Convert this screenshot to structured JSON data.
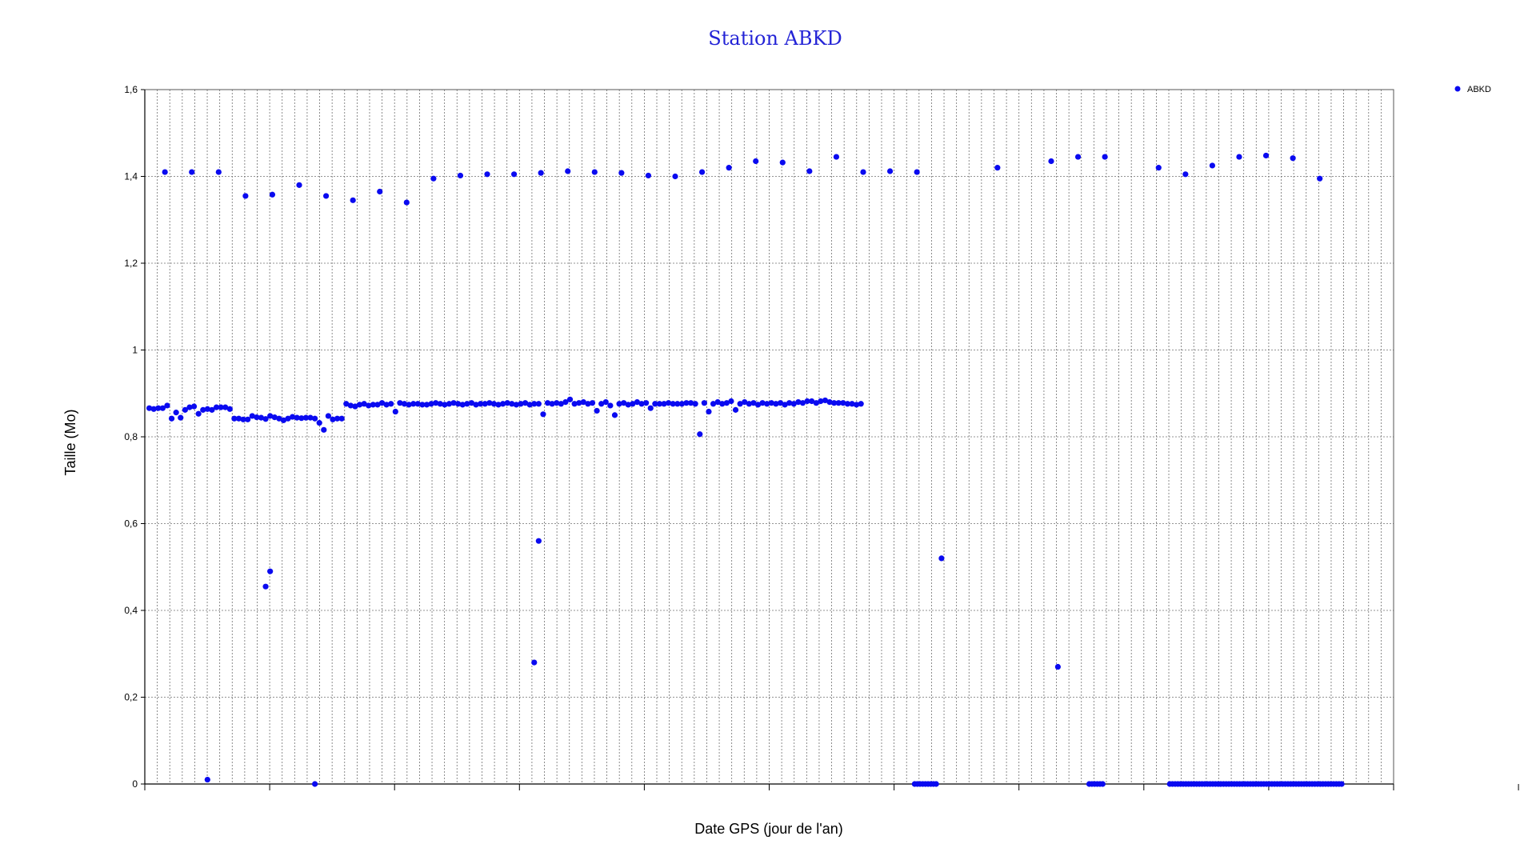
{
  "chart_data": {
    "type": "scatter",
    "title": "Station ABKD",
    "xlabel": "Date GPS (jour de l'an)",
    "ylabel": "Taille (Mo)",
    "ylim": [
      0,
      1.6
    ],
    "y_ticks": [
      "0",
      "0,2",
      "0,4",
      "0,6",
      "0,8",
      "1",
      "1,2",
      "1,4",
      "1,6"
    ],
    "x_tick_labels_visible": false,
    "grid": true,
    "legend_position": "top-right",
    "colors": {
      "series": "#0a0af0",
      "title": "#2323d6",
      "grid": "#707070"
    },
    "series": [
      {
        "name": "ABKD",
        "points": [
          [
            1,
            0.866
          ],
          [
            2,
            0.864
          ],
          [
            3,
            0.866
          ],
          [
            4,
            0.866
          ],
          [
            5,
            0.872
          ],
          [
            6,
            0.842
          ],
          [
            7,
            0.856
          ],
          [
            8,
            0.844
          ],
          [
            9,
            0.862
          ],
          [
            10,
            0.868
          ],
          [
            11,
            0.87
          ],
          [
            12,
            0.853
          ],
          [
            13,
            0.862
          ],
          [
            14,
            0.864
          ],
          [
            15,
            0.862
          ],
          [
            16,
            0.868
          ],
          [
            17,
            0.868
          ],
          [
            18,
            0.868
          ],
          [
            19,
            0.864
          ],
          [
            20,
            0.842
          ],
          [
            21,
            0.842
          ],
          [
            22,
            0.84
          ],
          [
            23,
            0.84
          ],
          [
            24,
            0.848
          ],
          [
            25,
            0.845
          ],
          [
            26,
            0.844
          ],
          [
            27,
            0.841
          ],
          [
            28,
            0.848
          ],
          [
            29,
            0.845
          ],
          [
            30,
            0.842
          ],
          [
            31,
            0.838
          ],
          [
            32,
            0.842
          ],
          [
            33,
            0.846
          ],
          [
            34,
            0.844
          ],
          [
            35,
            0.843
          ],
          [
            36,
            0.844
          ],
          [
            37,
            0.844
          ],
          [
            38,
            0.842
          ],
          [
            39,
            0.832
          ],
          [
            40,
            0.816
          ],
          [
            41,
            0.848
          ],
          [
            42,
            0.84
          ],
          [
            43,
            0.842
          ],
          [
            44,
            0.842
          ],
          [
            45,
            0.876
          ],
          [
            46,
            0.872
          ],
          [
            47,
            0.87
          ],
          [
            48,
            0.874
          ],
          [
            49,
            0.876
          ],
          [
            50,
            0.872
          ],
          [
            51,
            0.874
          ],
          [
            52,
            0.874
          ],
          [
            53,
            0.878
          ],
          [
            54,
            0.874
          ],
          [
            55,
            0.876
          ],
          [
            56,
            0.858
          ],
          [
            57,
            0.878
          ],
          [
            58,
            0.876
          ],
          [
            59,
            0.874
          ],
          [
            60,
            0.876
          ],
          [
            61,
            0.876
          ],
          [
            62,
            0.874
          ],
          [
            63,
            0.874
          ],
          [
            64,
            0.876
          ],
          [
            65,
            0.878
          ],
          [
            66,
            0.876
          ],
          [
            67,
            0.874
          ],
          [
            68,
            0.876
          ],
          [
            69,
            0.878
          ],
          [
            70,
            0.876
          ],
          [
            71,
            0.874
          ],
          [
            72,
            0.876
          ],
          [
            73,
            0.878
          ],
          [
            74,
            0.874
          ],
          [
            75,
            0.876
          ],
          [
            76,
            0.876
          ],
          [
            77,
            0.878
          ],
          [
            78,
            0.876
          ],
          [
            79,
            0.874
          ],
          [
            80,
            0.876
          ],
          [
            81,
            0.878
          ],
          [
            82,
            0.876
          ],
          [
            83,
            0.874
          ],
          [
            84,
            0.876
          ],
          [
            85,
            0.878
          ],
          [
            86,
            0.874
          ],
          [
            87,
            0.876
          ],
          [
            88,
            0.876
          ],
          [
            89,
            0.852
          ],
          [
            90,
            0.878
          ],
          [
            91,
            0.876
          ],
          [
            92,
            0.878
          ],
          [
            93,
            0.876
          ],
          [
            94,
            0.88
          ],
          [
            95,
            0.886
          ],
          [
            96,
            0.876
          ],
          [
            97,
            0.878
          ],
          [
            98,
            0.88
          ],
          [
            99,
            0.876
          ],
          [
            100,
            0.878
          ],
          [
            101,
            0.86
          ],
          [
            102,
            0.876
          ],
          [
            103,
            0.88
          ],
          [
            104,
            0.872
          ],
          [
            105,
            0.85
          ],
          [
            106,
            0.876
          ],
          [
            107,
            0.878
          ],
          [
            108,
            0.874
          ],
          [
            109,
            0.876
          ],
          [
            110,
            0.88
          ],
          [
            111,
            0.876
          ],
          [
            112,
            0.878
          ],
          [
            113,
            0.866
          ],
          [
            114,
            0.876
          ],
          [
            115,
            0.876
          ],
          [
            116,
            0.876
          ],
          [
            117,
            0.878
          ],
          [
            118,
            0.876
          ],
          [
            119,
            0.876
          ],
          [
            120,
            0.876
          ],
          [
            121,
            0.878
          ],
          [
            122,
            0.878
          ],
          [
            123,
            0.876
          ],
          [
            124,
            0.806
          ],
          [
            125,
            0.878
          ],
          [
            126,
            0.858
          ],
          [
            127,
            0.876
          ],
          [
            128,
            0.88
          ],
          [
            129,
            0.876
          ],
          [
            130,
            0.878
          ],
          [
            131,
            0.882
          ],
          [
            132,
            0.862
          ],
          [
            133,
            0.876
          ],
          [
            134,
            0.88
          ],
          [
            135,
            0.876
          ],
          [
            136,
            0.878
          ],
          [
            137,
            0.874
          ],
          [
            138,
            0.878
          ],
          [
            139,
            0.876
          ],
          [
            140,
            0.878
          ],
          [
            141,
            0.876
          ],
          [
            142,
            0.878
          ],
          [
            143,
            0.874
          ],
          [
            144,
            0.878
          ],
          [
            145,
            0.876
          ],
          [
            146,
            0.88
          ],
          [
            147,
            0.878
          ],
          [
            148,
            0.882
          ],
          [
            149,
            0.882
          ],
          [
            150,
            0.878
          ],
          [
            151,
            0.882
          ],
          [
            152,
            0.884
          ],
          [
            153,
            0.88
          ],
          [
            154,
            0.878
          ],
          [
            155,
            0.878
          ],
          [
            156,
            0.878
          ],
          [
            157,
            0.876
          ],
          [
            158,
            0.876
          ],
          [
            159,
            0.874
          ],
          [
            160,
            0.876
          ],
          [
            4.5,
            1.41
          ],
          [
            10.5,
            1.41
          ],
          [
            16.5,
            1.41
          ],
          [
            22.5,
            1.355
          ],
          [
            28.5,
            1.358
          ],
          [
            34.5,
            1.38
          ],
          [
            40.5,
            1.355
          ],
          [
            46.5,
            1.345
          ],
          [
            52.5,
            1.365
          ],
          [
            58.5,
            1.34
          ],
          [
            64.5,
            1.395
          ],
          [
            70.5,
            1.402
          ],
          [
            76.5,
            1.405
          ],
          [
            82.5,
            1.405
          ],
          [
            88.5,
            1.408
          ],
          [
            94.5,
            1.412
          ],
          [
            100.5,
            1.41
          ],
          [
            106.5,
            1.408
          ],
          [
            112.5,
            1.402
          ],
          [
            118.5,
            1.4
          ],
          [
            124.5,
            1.41
          ],
          [
            130.5,
            1.42
          ],
          [
            136.5,
            1.435
          ],
          [
            142.5,
            1.432
          ],
          [
            148.5,
            1.412
          ],
          [
            154.5,
            1.445
          ],
          [
            160.5,
            1.41
          ],
          [
            166.5,
            1.412
          ],
          [
            172.5,
            1.41
          ],
          [
            190.5,
            1.42
          ],
          [
            202.5,
            1.435
          ],
          [
            208.5,
            1.445
          ],
          [
            214.5,
            1.445
          ],
          [
            226.5,
            1.42
          ],
          [
            232.5,
            1.405
          ],
          [
            238.5,
            1.425
          ],
          [
            244.5,
            1.445
          ],
          [
            250.5,
            1.448
          ],
          [
            256.5,
            1.442
          ],
          [
            262.5,
            1.395
          ],
          [
            14,
            0.01
          ],
          [
            27,
            0.455
          ],
          [
            28,
            0.49
          ],
          [
            38,
            0.0
          ],
          [
            87,
            0.28
          ],
          [
            88,
            0.56
          ],
          [
            178,
            0.52
          ],
          [
            204,
            0.27
          ]
        ]
      }
    ]
  }
}
